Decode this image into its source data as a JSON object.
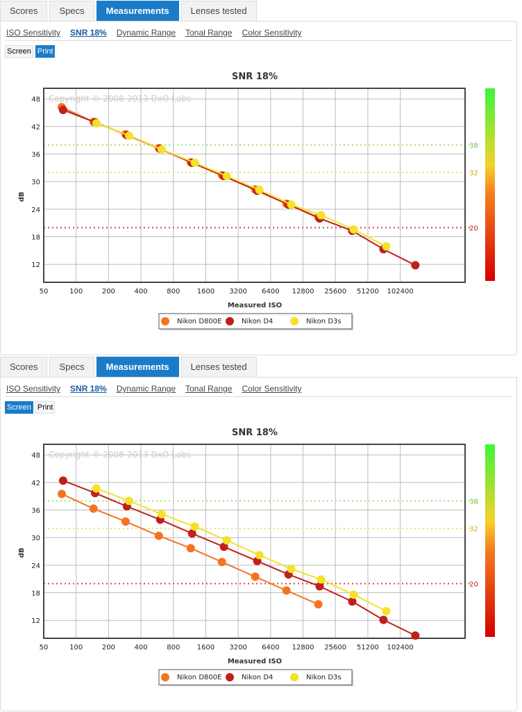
{
  "tabs": [
    "Scores",
    "Specs",
    "Measurements",
    "Lenses tested"
  ],
  "subtabs": [
    "ISO Sensitivity",
    "SNR 18%",
    "Dynamic Range",
    "Tonal Range",
    "Color Sensitivity"
  ],
  "buttons": [
    "Screen",
    "Print"
  ],
  "colors": {
    "accent": "#1a7cc9",
    "d800e": "#f47321",
    "d4": "#c0201a",
    "d3s": "#f5e12a"
  },
  "chart_data": [
    {
      "type": "line",
      "mode": "Print",
      "title": "SNR 18%",
      "xlabel": "Measured ISO",
      "ylabel": "dB",
      "copyright": "Copyright © 2008-2013 DxO Labs",
      "xscale": "log2",
      "xlim": [
        50,
        409600
      ],
      "ylim": [
        8.1,
        50.3
      ],
      "xticks": [
        "50",
        "100",
        "200",
        "400",
        "800",
        "1600",
        "3200",
        "6400",
        "12800",
        "25600",
        "51200",
        "102400"
      ],
      "yticks": [
        12,
        18,
        24,
        30,
        36,
        42,
        48
      ],
      "ref_lines": [
        {
          "value": 38,
          "label": "38",
          "color": "#9ee37a"
        },
        {
          "value": 32,
          "label": "32",
          "color": "#e3e37a"
        },
        {
          "value": 20,
          "label": "20",
          "color": "#e04040"
        }
      ],
      "legend": "bottom-center",
      "series": [
        {
          "name": "Nikon D800E",
          "color": "#f47321",
          "x": [
            73.5,
            145,
            288,
            586,
            1159,
            2258,
            4600,
            8970,
            17750
          ],
          "y": [
            46.2,
            43.0,
            40.3,
            37.3,
            34.2,
            31.4,
            28.3,
            25.2,
            22.3
          ]
        },
        {
          "name": "Nikon D4",
          "color": "#c0201a",
          "x": [
            75.7,
            150,
            296,
            604,
            1194,
            2361,
            4810,
            9380,
            18270,
            36680,
            71500,
            141400
          ],
          "y": [
            45.6,
            42.9,
            40.1,
            37.1,
            34.1,
            31.2,
            28.0,
            25.0,
            22.0,
            19.3,
            15.3,
            11.8
          ]
        },
        {
          "name": "Nikon D3s",
          "color": "#f5e12a",
          "x": [
            154,
            310,
            622,
            1266,
            2506,
            5030,
            9950,
            18820,
            37770,
            75850
          ],
          "y": [
            42.7,
            40.0,
            37.0,
            34.1,
            31.2,
            28.2,
            25.0,
            22.7,
            19.6,
            15.9
          ]
        }
      ]
    },
    {
      "type": "line",
      "mode": "Screen",
      "title": "SNR 18%",
      "xlabel": "Measured ISO",
      "ylabel": "dB",
      "copyright": "Copyright © 2008-2013 DxO Labs",
      "xscale": "log2",
      "xlim": [
        50,
        409600
      ],
      "ylim": [
        8.1,
        50.3
      ],
      "xticks": [
        "50",
        "100",
        "200",
        "400",
        "800",
        "1600",
        "3200",
        "6400",
        "12800",
        "25600",
        "51200",
        "102400"
      ],
      "yticks": [
        12,
        18,
        24,
        30,
        36,
        42,
        48
      ],
      "ref_lines": [
        {
          "value": 38,
          "label": "38",
          "color": "#9ee37a"
        },
        {
          "value": 32,
          "label": "32",
          "color": "#e3e37a"
        },
        {
          "value": 20,
          "label": "20",
          "color": "#e04040"
        }
      ],
      "legend": "bottom-center",
      "series": [
        {
          "name": "Nikon D800E",
          "color": "#f47321",
          "x": [
            73.5,
            145,
            288,
            586,
            1159,
            2258,
            4600,
            8970,
            17750
          ],
          "y": [
            39.5,
            36.3,
            33.5,
            30.4,
            27.7,
            24.7,
            21.5,
            18.5,
            15.5
          ]
        },
        {
          "name": "Nikon D4",
          "color": "#c0201a",
          "x": [
            75.7,
            150,
            296,
            604,
            1194,
            2361,
            4810,
            9380,
            18270,
            36680,
            71500,
            141400
          ],
          "y": [
            42.4,
            39.7,
            36.8,
            33.9,
            30.9,
            28.0,
            24.9,
            22.0,
            19.4,
            16.1,
            12.1,
            8.7
          ]
        },
        {
          "name": "Nikon D3s",
          "color": "#f5e12a",
          "x": [
            154,
            310,
            622,
            1266,
            2506,
            5030,
            9950,
            18820,
            37770,
            75850
          ],
          "y": [
            40.7,
            38.0,
            35.1,
            32.4,
            29.4,
            26.2,
            23.2,
            20.9,
            17.6,
            14.0
          ]
        }
      ]
    }
  ]
}
